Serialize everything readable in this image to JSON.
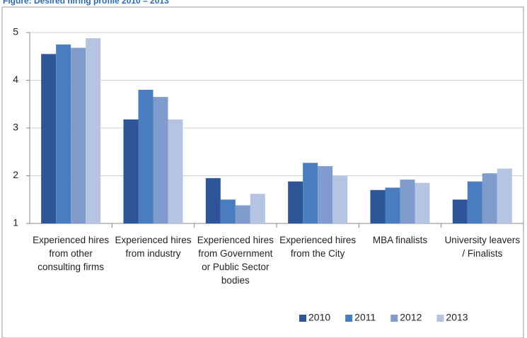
{
  "chart_data": {
    "type": "bar",
    "title": "Figure: Desired hiring profile 2010 – 2013",
    "categories": [
      "Experienced hires from other consulting firms",
      "Experienced hires from industry",
      "Experienced hires from Government or Public Sector bodies",
      "Experienced hires from the City",
      "MBA finalists",
      "University leavers / Finalists"
    ],
    "series": [
      {
        "name": "2010",
        "color": "#2e5597",
        "values": [
          4.55,
          3.18,
          1.95,
          1.88,
          1.7,
          1.5
        ]
      },
      {
        "name": "2011",
        "color": "#4a7cc0",
        "values": [
          4.75,
          3.8,
          1.5,
          2.27,
          1.75,
          1.88
        ]
      },
      {
        "name": "2012",
        "color": "#7f9ccc",
        "values": [
          4.68,
          3.65,
          1.38,
          2.2,
          1.92,
          2.05
        ]
      },
      {
        "name": "2013",
        "color": "#b4c4e2",
        "values": [
          4.88,
          3.18,
          1.62,
          2.0,
          1.85,
          2.15
        ]
      }
    ],
    "ylim": [
      1,
      5
    ],
    "yticks": [
      1,
      2,
      3,
      4,
      5
    ],
    "grid": true,
    "legend": "bottom-right"
  }
}
